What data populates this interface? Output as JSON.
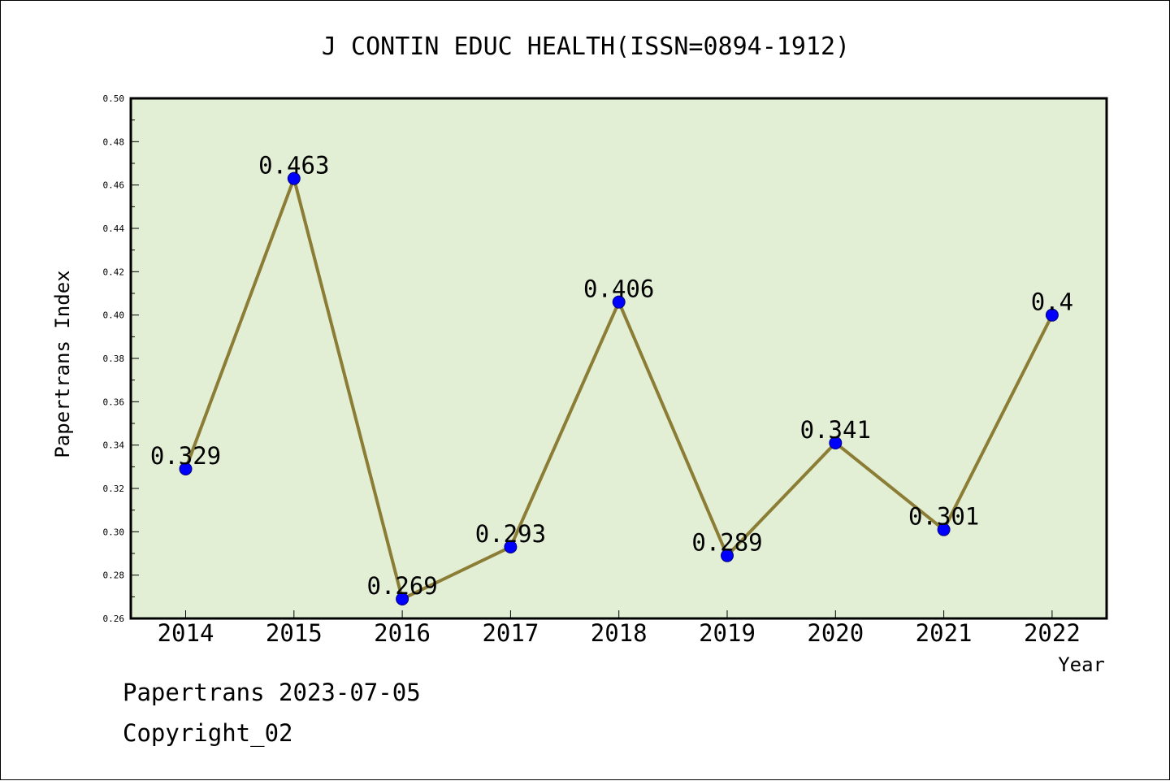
{
  "chart_data": {
    "type": "line",
    "title": "J CONTIN EDUC HEALTH(ISSN=0894-1912)",
    "xlabel": "Year",
    "ylabel": "Papertrans Index",
    "categories": [
      "2014",
      "2015",
      "2016",
      "2017",
      "2018",
      "2019",
      "2020",
      "2021",
      "2022"
    ],
    "values": [
      0.329,
      0.463,
      0.269,
      0.293,
      0.406,
      0.289,
      0.341,
      0.301,
      0.4
    ],
    "data_labels": [
      "0.329",
      "0.463",
      "0.269",
      "0.293",
      "0.406",
      "0.289",
      "0.341",
      "0.301",
      "0.4"
    ],
    "ylim": [
      0.26,
      0.5
    ],
    "yticks": [
      "0.26",
      "0.28",
      "0.30",
      "0.32",
      "0.34",
      "0.36",
      "0.38",
      "0.40",
      "0.42",
      "0.44",
      "0.46",
      "0.48",
      "0.50"
    ],
    "grid": false,
    "colors": {
      "plot_background": "#e2efd4",
      "line": "#8b7d35",
      "marker": "#0000ff"
    }
  },
  "footer": {
    "date_line": "Papertrans 2023-07-05",
    "copyright": "Copyright_02"
  }
}
